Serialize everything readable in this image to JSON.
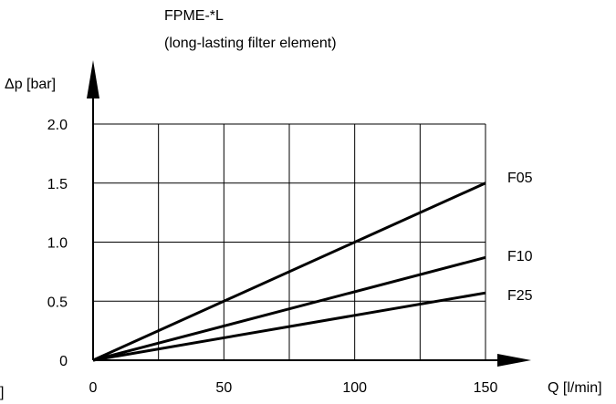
{
  "chart_data": {
    "type": "line",
    "title": "FPME-*L",
    "subtitle": "(long-lasting filter element)",
    "xlabel": "Q [l/min]",
    "ylabel": "Δp [bar]",
    "xlim": [
      0,
      150
    ],
    "ylim": [
      0,
      2.0
    ],
    "grid": true,
    "x_ticks": [
      "0",
      "50",
      "100",
      "150"
    ],
    "y_ticks": [
      "0",
      "0.5",
      "1.0",
      "1.5",
      "2.0"
    ],
    "x_tick_values": [
      0,
      50,
      100,
      150
    ],
    "y_tick_values": [
      0,
      0.5,
      1.0,
      1.5,
      2.0
    ],
    "x_grid_values": [
      0,
      25,
      50,
      75,
      100,
      125,
      150
    ],
    "series": [
      {
        "name": "F05",
        "x": [
          0,
          150
        ],
        "y": [
          0,
          1.5
        ]
      },
      {
        "name": "F10",
        "x": [
          0,
          150
        ],
        "y": [
          0,
          0.87
        ]
      },
      {
        "name": "F25",
        "x": [
          0,
          150
        ],
        "y": [
          0,
          0.57
        ]
      }
    ],
    "cropped_left_text": "]"
  }
}
